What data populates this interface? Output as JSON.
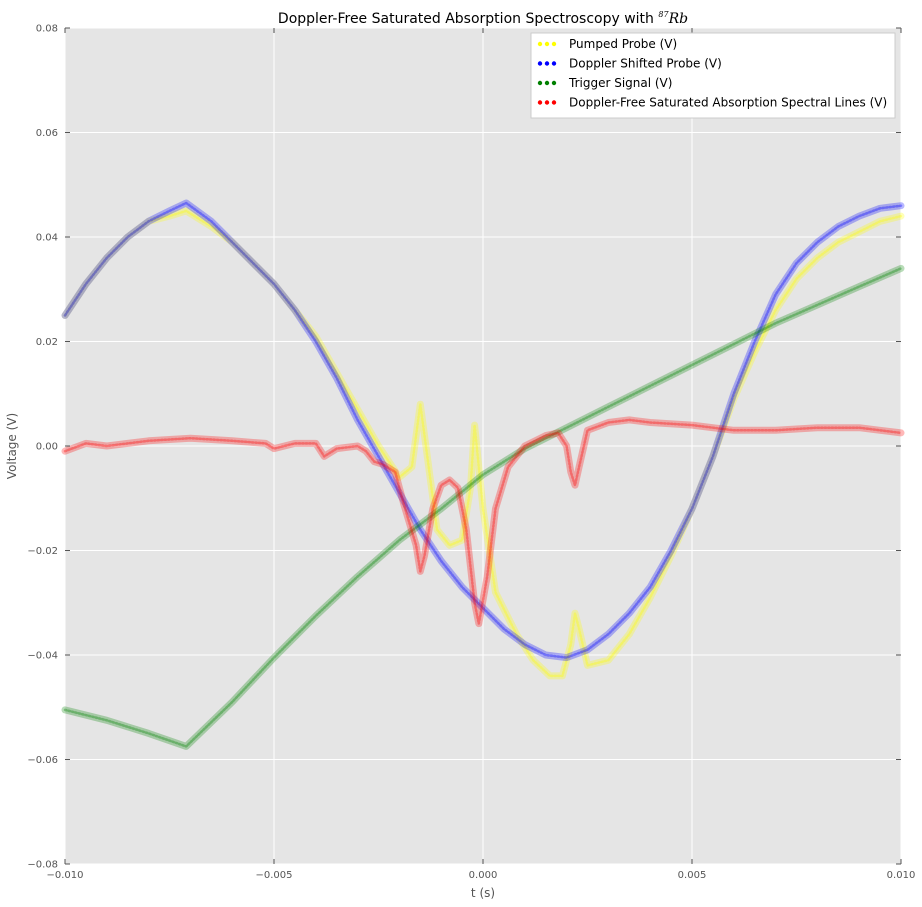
{
  "chart_data": {
    "type": "line",
    "title": {
      "prefix": "Doppler-Free Saturated Absorption Spectroscopy with ",
      "isotope_mass": "87",
      "element": "Rb"
    },
    "xlabel": "t (s)",
    "ylabel": "Voltage (V)",
    "xlim": [
      -0.01,
      0.01
    ],
    "ylim": [
      -0.08,
      0.08
    ],
    "xticks": [
      -0.01,
      -0.005,
      0.0,
      0.005,
      0.01
    ],
    "xtick_labels": [
      "−0.010",
      "−0.005",
      "0.000",
      "0.005",
      "0.010"
    ],
    "yticks": [
      -0.08,
      -0.06,
      -0.04,
      -0.02,
      0.0,
      0.02,
      0.04,
      0.06,
      0.08
    ],
    "ytick_labels": [
      "−0.08",
      "−0.06",
      "−0.04",
      "−0.02",
      "0.00",
      "0.02",
      "0.04",
      "0.06",
      "0.08"
    ],
    "grid": true,
    "legend_position": "top-right",
    "series": [
      {
        "name": "Pumped Probe (V)",
        "color": "#ffff00",
        "points": [
          [
            -0.01,
            0.025
          ],
          [
            -0.0095,
            0.031
          ],
          [
            -0.009,
            0.036
          ],
          [
            -0.0085,
            0.04
          ],
          [
            -0.008,
            0.043
          ],
          [
            -0.0075,
            0.044
          ],
          [
            -0.0071,
            0.045
          ],
          [
            -0.0065,
            0.042
          ],
          [
            -0.006,
            0.039
          ],
          [
            -0.0055,
            0.035
          ],
          [
            -0.005,
            0.031
          ],
          [
            -0.0045,
            0.026
          ],
          [
            -0.004,
            0.021
          ],
          [
            -0.0035,
            0.014
          ],
          [
            -0.003,
            0.007
          ],
          [
            -0.0025,
            0.0
          ],
          [
            -0.002,
            -0.006
          ],
          [
            -0.0017,
            -0.004
          ],
          [
            -0.0015,
            0.008
          ],
          [
            -0.0013,
            -0.004
          ],
          [
            -0.0011,
            -0.016
          ],
          [
            -0.0008,
            -0.019
          ],
          [
            -0.0005,
            -0.018
          ],
          [
            -0.0003,
            -0.008
          ],
          [
            -0.0002,
            0.004
          ],
          [
            0.0,
            -0.012
          ],
          [
            0.0003,
            -0.028
          ],
          [
            0.0008,
            -0.036
          ],
          [
            0.0012,
            -0.041
          ],
          [
            0.0016,
            -0.044
          ],
          [
            0.0019,
            -0.044
          ],
          [
            0.0021,
            -0.038
          ],
          [
            0.0022,
            -0.032
          ],
          [
            0.0023,
            -0.035
          ],
          [
            0.0025,
            -0.042
          ],
          [
            0.003,
            -0.041
          ],
          [
            0.0035,
            -0.036
          ],
          [
            0.004,
            -0.029
          ],
          [
            0.0045,
            -0.021
          ],
          [
            0.005,
            -0.012
          ],
          [
            0.0055,
            -0.002
          ],
          [
            0.006,
            0.009
          ],
          [
            0.0065,
            0.018
          ],
          [
            0.007,
            0.026
          ],
          [
            0.0075,
            0.032
          ],
          [
            0.008,
            0.036
          ],
          [
            0.0085,
            0.039
          ],
          [
            0.009,
            0.041
          ],
          [
            0.0095,
            0.043
          ],
          [
            0.01,
            0.044
          ]
        ]
      },
      {
        "name": "Doppler Shifted Probe (V)",
        "color": "#0000ff",
        "points": [
          [
            -0.01,
            0.025
          ],
          [
            -0.0095,
            0.031
          ],
          [
            -0.009,
            0.036
          ],
          [
            -0.0085,
            0.04
          ],
          [
            -0.008,
            0.043
          ],
          [
            -0.0075,
            0.045
          ],
          [
            -0.0071,
            0.0465
          ],
          [
            -0.0065,
            0.043
          ],
          [
            -0.006,
            0.039
          ],
          [
            -0.0055,
            0.035
          ],
          [
            -0.005,
            0.031
          ],
          [
            -0.0045,
            0.026
          ],
          [
            -0.004,
            0.02
          ],
          [
            -0.0035,
            0.013
          ],
          [
            -0.003,
            0.005
          ],
          [
            -0.0025,
            -0.002
          ],
          [
            -0.002,
            -0.009
          ],
          [
            -0.0015,
            -0.016
          ],
          [
            -0.001,
            -0.022
          ],
          [
            -0.0005,
            -0.027
          ],
          [
            0.0,
            -0.031
          ],
          [
            0.0005,
            -0.035
          ],
          [
            0.001,
            -0.038
          ],
          [
            0.0015,
            -0.04
          ],
          [
            0.002,
            -0.0405
          ],
          [
            0.0025,
            -0.039
          ],
          [
            0.003,
            -0.036
          ],
          [
            0.0035,
            -0.032
          ],
          [
            0.004,
            -0.027
          ],
          [
            0.0045,
            -0.02
          ],
          [
            0.005,
            -0.012
          ],
          [
            0.0055,
            -0.002
          ],
          [
            0.006,
            0.01
          ],
          [
            0.0065,
            0.02
          ],
          [
            0.007,
            0.029
          ],
          [
            0.0075,
            0.035
          ],
          [
            0.008,
            0.039
          ],
          [
            0.0085,
            0.042
          ],
          [
            0.009,
            0.044
          ],
          [
            0.0095,
            0.0455
          ],
          [
            0.01,
            0.046
          ]
        ]
      },
      {
        "name": "Trigger Signal (V)",
        "color": "#008000",
        "points": [
          [
            -0.01,
            -0.0505
          ],
          [
            -0.009,
            -0.0525
          ],
          [
            -0.008,
            -0.055
          ],
          [
            -0.0071,
            -0.0575
          ],
          [
            -0.006,
            -0.049
          ],
          [
            -0.005,
            -0.0405
          ],
          [
            -0.004,
            -0.0325
          ],
          [
            -0.003,
            -0.025
          ],
          [
            -0.002,
            -0.018
          ],
          [
            -0.001,
            -0.012
          ],
          [
            0.0,
            -0.0055
          ],
          [
            0.001,
            -0.0005
          ],
          [
            0.002,
            0.0035
          ],
          [
            0.003,
            0.0075
          ],
          [
            0.004,
            0.0115
          ],
          [
            0.005,
            0.0155
          ],
          [
            0.006,
            0.0195
          ],
          [
            0.007,
            0.0235
          ],
          [
            0.008,
            0.027
          ],
          [
            0.009,
            0.0305
          ],
          [
            0.01,
            0.034
          ]
        ]
      },
      {
        "name": "Doppler-Free Saturated Absorption Spectral Lines (V)",
        "color": "#ff0000",
        "points": [
          [
            -0.01,
            -0.001
          ],
          [
            -0.0095,
            0.0005
          ],
          [
            -0.009,
            0.0
          ],
          [
            -0.0085,
            0.0005
          ],
          [
            -0.008,
            0.001
          ],
          [
            -0.007,
            0.0015
          ],
          [
            -0.006,
            0.001
          ],
          [
            -0.0052,
            0.0005
          ],
          [
            -0.005,
            -0.0005
          ],
          [
            -0.0045,
            0.0005
          ],
          [
            -0.004,
            0.0005
          ],
          [
            -0.0038,
            -0.002
          ],
          [
            -0.0035,
            -0.0005
          ],
          [
            -0.003,
            0.0
          ],
          [
            -0.0028,
            -0.001
          ],
          [
            -0.0026,
            -0.003
          ],
          [
            -0.0024,
            -0.0035
          ],
          [
            -0.0021,
            -0.005
          ],
          [
            -0.0019,
            -0.011
          ],
          [
            -0.0016,
            -0.019
          ],
          [
            -0.0015,
            -0.024
          ],
          [
            -0.0014,
            -0.021
          ],
          [
            -0.0012,
            -0.012
          ],
          [
            -0.001,
            -0.0075
          ],
          [
            -0.0008,
            -0.0065
          ],
          [
            -0.0006,
            -0.008
          ],
          [
            -0.0004,
            -0.016
          ],
          [
            -0.0002,
            -0.03
          ],
          [
            -0.0001,
            -0.034
          ],
          [
            0.0001,
            -0.025
          ],
          [
            0.0003,
            -0.012
          ],
          [
            0.0006,
            -0.004
          ],
          [
            0.001,
            0.0
          ],
          [
            0.0015,
            0.002
          ],
          [
            0.0018,
            0.0025
          ],
          [
            0.002,
            0.0
          ],
          [
            0.0021,
            -0.005
          ],
          [
            0.0022,
            -0.0075
          ],
          [
            0.0023,
            -0.004
          ],
          [
            0.0025,
            0.003
          ],
          [
            0.003,
            0.0045
          ],
          [
            0.0035,
            0.005
          ],
          [
            0.004,
            0.0045
          ],
          [
            0.005,
            0.004
          ],
          [
            0.006,
            0.003
          ],
          [
            0.007,
            0.003
          ],
          [
            0.008,
            0.0035
          ],
          [
            0.009,
            0.0035
          ],
          [
            0.0095,
            0.003
          ],
          [
            0.01,
            0.0025
          ]
        ]
      }
    ]
  }
}
